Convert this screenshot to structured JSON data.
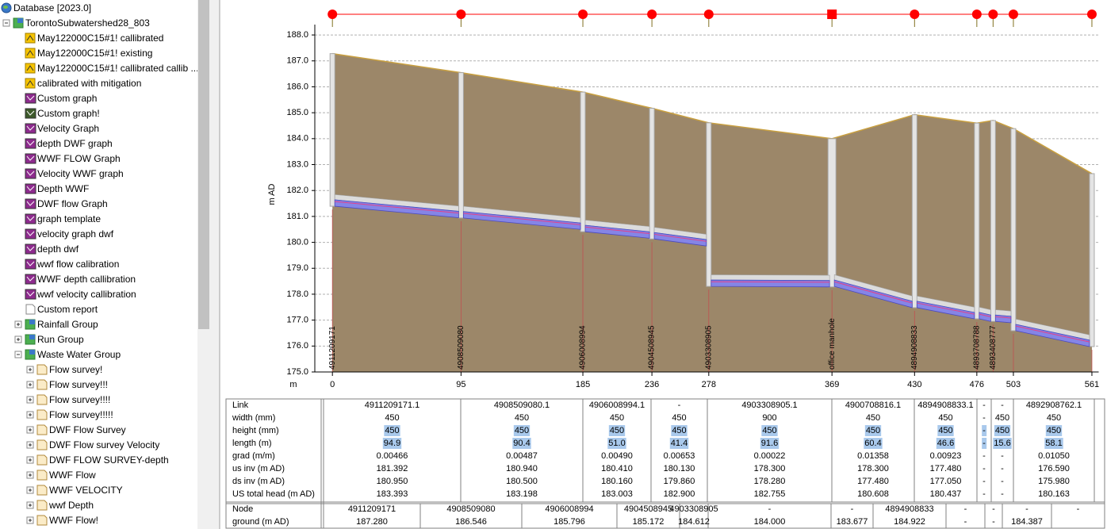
{
  "tree": {
    "label": "Database [2023.0]",
    "icon": "database",
    "expanded": true,
    "children": [
      {
        "label": "TorontoSubwatershed28_803",
        "icon": "group",
        "expanded": true,
        "children": [
          {
            "label": "May122000C15#1! callibrated",
            "icon": "run"
          },
          {
            "label": "May122000C15#1! existing",
            "icon": "run"
          },
          {
            "label": "May122000C15#1! callibrated callib ...",
            "icon": "run"
          },
          {
            "label": "calibrated with mitigation",
            "icon": "run"
          },
          {
            "label": "Custom graph",
            "icon": "graph"
          },
          {
            "label": "Custom graph!",
            "icon": "graph-green"
          },
          {
            "label": "Velocity Graph",
            "icon": "graph"
          },
          {
            "label": "depth DWF graph",
            "icon": "graph"
          },
          {
            "label": "WWF FLOW Graph",
            "icon": "graph"
          },
          {
            "label": "Velocity WWF graph",
            "icon": "graph"
          },
          {
            "label": "Depth WWF",
            "icon": "graph"
          },
          {
            "label": "DWF flow Graph",
            "icon": "graph"
          },
          {
            "label": "graph template",
            "icon": "graph"
          },
          {
            "label": "velocity graph dwf",
            "icon": "graph"
          },
          {
            "label": "depth dwf",
            "icon": "graph"
          },
          {
            "label": "wwf flow calibration",
            "icon": "graph"
          },
          {
            "label": "WWF depth callibration",
            "icon": "graph"
          },
          {
            "label": "wwf velocity callibration",
            "icon": "graph"
          },
          {
            "label": "Custom report",
            "icon": "report"
          },
          {
            "label": "Rainfall Group",
            "icon": "group",
            "expanded": false
          },
          {
            "label": "Run Group",
            "icon": "group",
            "expanded": false
          },
          {
            "label": "Waste Water Group",
            "icon": "group",
            "expanded": true,
            "children": [
              {
                "label": "Flow survey!",
                "icon": "survey",
                "expanded": false
              },
              {
                "label": "Flow survey!!!",
                "icon": "survey",
                "expanded": false
              },
              {
                "label": "Flow survey!!!!",
                "icon": "survey",
                "expanded": false
              },
              {
                "label": "Flow survey!!!!!",
                "icon": "survey",
                "expanded": false
              },
              {
                "label": "DWF Flow Survey",
                "icon": "survey",
                "expanded": false
              },
              {
                "label": "DWF Flow survey Velocity",
                "icon": "survey",
                "expanded": false
              },
              {
                "label": "DWF FLOW SURVEY-depth",
                "icon": "survey",
                "expanded": false
              },
              {
                "label": "WWF Flow",
                "icon": "survey",
                "expanded": false
              },
              {
                "label": "WWF VELOCITY",
                "icon": "survey",
                "expanded": false
              },
              {
                "label": "wwf Depth",
                "icon": "survey",
                "expanded": false
              },
              {
                "label": "WWF Flow!",
                "icon": "survey",
                "expanded": false
              }
            ]
          }
        ]
      }
    ]
  },
  "chart_data": {
    "type": "long-section",
    "ylabel": "m AD",
    "xlabel": "m",
    "ylim": [
      175,
      188.4
    ],
    "yticks": [
      {
        "value": 175,
        "label": "175.0"
      },
      {
        "value": 176,
        "label": "176.0"
      },
      {
        "value": 177,
        "label": "177.0"
      },
      {
        "value": 178,
        "label": "178.0"
      },
      {
        "value": 179,
        "label": "179.0"
      },
      {
        "value": 180,
        "label": "180.0"
      },
      {
        "value": 181,
        "label": "181.0"
      },
      {
        "value": 182,
        "label": "182.0"
      },
      {
        "value": 183,
        "label": "183.0"
      },
      {
        "value": 184,
        "label": "184.0"
      },
      {
        "value": 185,
        "label": "185.0"
      },
      {
        "value": 186,
        "label": "186.0"
      },
      {
        "value": 187,
        "label": "187.0"
      },
      {
        "value": 188,
        "label": "188.0"
      }
    ],
    "xlim": [
      -13,
      566
    ],
    "xticks": [
      0,
      95,
      185,
      236,
      278,
      369,
      430,
      476,
      503,
      561
    ],
    "grid": true,
    "marker_color": "#ff0000",
    "ground_color": "#9c8769",
    "nodes": {
      "labels": [
        "4911209171",
        "4908509080",
        "4906008994",
        "4904508945",
        "4903308905",
        "office manhole",
        "4894908833",
        "4893708788",
        "4893408777",
        null,
        null
      ],
      "chainage": [
        0,
        95,
        185,
        236,
        278,
        369,
        430,
        476,
        488,
        503,
        561
      ],
      "ground": [
        187.28,
        186.546,
        185.796,
        185.172,
        184.612,
        184.0,
        184.922,
        184.6,
        184.7,
        184.387,
        182.65
      ],
      "shape": [
        "circle",
        "circle",
        "circle",
        "circle",
        "circle",
        "square",
        "circle",
        "circle",
        "circle",
        "circle",
        "circle"
      ]
    },
    "links": {
      "us_inv": [
        181.392,
        180.94,
        180.41,
        180.13,
        178.3,
        178.3,
        177.48,
        177.05,
        176.95,
        176.59
      ],
      "ds_inv": [
        180.95,
        180.5,
        180.16,
        179.86,
        178.28,
        177.48,
        177.05,
        176.95,
        176.9,
        175.98
      ],
      "height_mm": [
        450,
        450,
        450,
        450,
        450,
        450,
        450,
        450,
        450,
        450
      ]
    }
  },
  "table": {
    "row_labels": [
      "Link",
      "width (mm)",
      "height (mm)",
      "length (m)",
      "grad (m/m)",
      "us inv (m AD)",
      "ds inv (m AD)",
      "US total head (m AD)"
    ],
    "links": [
      [
        "4911209171.1",
        "450",
        "450",
        "94.9",
        "0.00466",
        "181.392",
        "180.950",
        "183.393"
      ],
      [
        "4908509080.1",
        "450",
        "450",
        "90.4",
        "0.00487",
        "180.940",
        "180.500",
        "183.198"
      ],
      [
        "4906008994.1",
        "450",
        "450",
        "51.0",
        "0.00490",
        "180.410",
        "180.160",
        "183.003"
      ],
      [
        "-",
        "450",
        "450",
        "41.4",
        "0.00653",
        "180.130",
        "179.860",
        "182.900"
      ],
      [
        "4903308905.1",
        "900",
        "450",
        "91.6",
        "0.00022",
        "178.300",
        "178.280",
        "182.755"
      ],
      [
        "4900708816.1",
        "450",
        "450",
        "60.4",
        "0.01358",
        "178.300",
        "177.480",
        "180.608"
      ],
      [
        "4894908833.1",
        "450",
        "450",
        "46.6",
        "0.00923",
        "177.480",
        "177.050",
        "180.437"
      ],
      [
        "-",
        "-",
        "-",
        "-",
        "-",
        "-",
        "-",
        "-"
      ],
      [
        "-",
        "450",
        "450",
        "15.6",
        "-",
        "-",
        "-",
        "-"
      ],
      [
        "4892908762.1",
        "450",
        "450",
        "58.1",
        "0.01050",
        "176.590",
        "175.980",
        "180.163"
      ]
    ],
    "node_labels": [
      "Node",
      "ground (m AD)"
    ],
    "nodes": [
      [
        "4911209171",
        "187.280"
      ],
      [
        "4908509080",
        "186.546"
      ],
      [
        "4906008994",
        "185.796"
      ],
      [
        "4904508945",
        "185.172"
      ],
      [
        "4903308905",
        "184.612"
      ],
      [
        "-",
        "184.000"
      ],
      [
        "-",
        "183.677"
      ],
      [
        "4894908833",
        "184.922"
      ],
      [
        "-",
        "-"
      ],
      [
        "-",
        "-"
      ],
      [
        "-",
        "184.387"
      ],
      [
        "-"
      ]
    ],
    "highlight_rows": [
      2,
      3
    ]
  }
}
